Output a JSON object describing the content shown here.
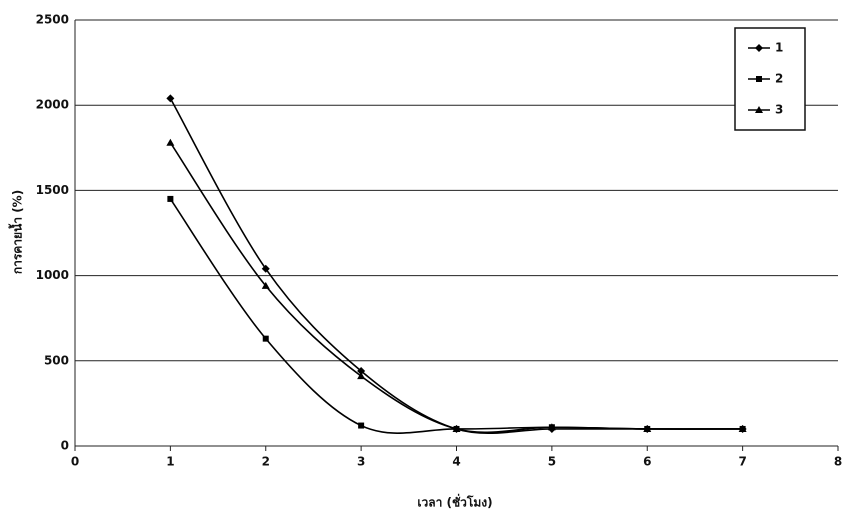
{
  "chart_data": {
    "type": "line",
    "x_label": "เวลา (ชั่วโมง)",
    "y_label": "การคายน้ำ (%)",
    "x": [
      1,
      2,
      3,
      4,
      5,
      6,
      7
    ],
    "series": [
      {
        "name": "1",
        "color": "#000000",
        "marker": "diamond",
        "values": [
          2040,
          1040,
          440,
          100,
          100,
          100,
          100
        ]
      },
      {
        "name": "2",
        "color": "#000000",
        "marker": "square",
        "values": [
          1450,
          630,
          120,
          100,
          110,
          100,
          100
        ]
      },
      {
        "name": "3",
        "color": "#000000",
        "marker": "triangle",
        "values": [
          1780,
          940,
          410,
          100,
          110,
          100,
          100
        ]
      }
    ],
    "xlim": [
      0,
      8
    ],
    "xticks": [
      0,
      1,
      2,
      3,
      4,
      5,
      6,
      7,
      8
    ],
    "ylim": [
      0,
      2500
    ],
    "yticks": [
      0,
      500,
      1000,
      1500,
      2000,
      2500
    ],
    "grid": true,
    "smooth": true,
    "legend": "top-right"
  }
}
